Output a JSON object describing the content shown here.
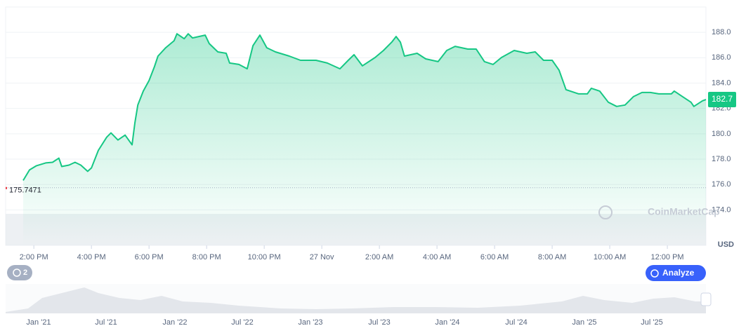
{
  "chart_data": {
    "type": "line",
    "x": [
      13.63,
      13.85,
      14.09,
      14.41,
      14.65,
      14.87,
      14.97,
      15.22,
      15.43,
      15.63,
      15.87,
      16.0,
      16.24,
      16.53,
      16.68,
      16.92,
      17.17,
      17.41,
      17.51,
      17.61,
      17.8,
      18.0,
      18.19,
      18.31,
      18.58,
      18.87,
      18.97,
      19.22,
      19.36,
      19.51,
      19.95,
      20.09,
      20.39,
      20.68,
      20.8,
      21.12,
      21.41,
      21.61,
      21.85,
      22.09,
      22.39,
      22.87,
      23.26,
      23.8,
      24.19,
      24.63,
      24.92,
      25.12,
      25.41,
      25.85,
      26.14,
      26.43,
      26.58,
      26.73,
      26.87,
      27.31,
      27.61,
      28.04,
      28.34,
      28.63,
      29.07,
      29.36,
      29.65,
      29.95,
      30.24,
      30.68,
      31.12,
      31.41,
      31.7,
      32.0,
      32.24,
      32.48,
      32.92,
      33.22,
      33.36,
      33.65,
      33.95,
      34.24,
      34.53,
      34.82,
      35.12,
      35.41,
      35.7,
      36.14,
      36.24,
      36.53,
      36.82,
      36.92,
      37.22,
      37.34
    ],
    "series": [
      {
        "name": "USD",
        "color": "#16c784",
        "values": [
          176.32,
          177.15,
          177.48,
          177.7,
          177.75,
          178.08,
          177.42,
          177.53,
          177.75,
          177.53,
          177.04,
          177.31,
          178.69,
          179.73,
          180.07,
          179.51,
          179.9,
          179.13,
          180.89,
          182.27,
          183.37,
          184.2,
          185.3,
          186.13,
          186.79,
          187.34,
          187.89,
          187.5,
          187.89,
          187.56,
          187.78,
          187.12,
          186.46,
          186.35,
          185.58,
          185.47,
          185.13,
          186.95,
          187.78,
          186.79,
          186.46,
          186.13,
          185.8,
          185.8,
          185.58,
          185.13,
          185.8,
          186.24,
          185.36,
          186.02,
          186.57,
          187.23,
          187.67,
          187.23,
          186.13,
          186.35,
          185.91,
          185.69,
          186.57,
          186.9,
          186.68,
          186.68,
          185.69,
          185.47,
          186.02,
          186.57,
          186.35,
          186.46,
          185.8,
          185.8,
          185.02,
          183.48,
          183.15,
          183.15,
          183.59,
          183.37,
          182.49,
          182.16,
          182.27,
          182.93,
          183.26,
          183.26,
          183.15,
          183.15,
          183.37,
          182.93,
          182.49,
          182.16,
          182.6,
          182.7
        ]
      }
    ],
    "xlim": [
      13.02,
      37.34
    ],
    "ylim": [
      171.2,
      190
    ],
    "xticks": [
      {
        "value": 14,
        "label": "2:00 PM"
      },
      {
        "value": 16,
        "label": "4:00 PM"
      },
      {
        "value": 18,
        "label": "6:00 PM"
      },
      {
        "value": 20,
        "label": "8:00 PM"
      },
      {
        "value": 22,
        "label": "10:00 PM"
      },
      {
        "value": 24,
        "label": "27 Nov"
      },
      {
        "value": 26,
        "label": "2:00 AM"
      },
      {
        "value": 28,
        "label": "4:00 AM"
      },
      {
        "value": 30,
        "label": "6:00 AM"
      },
      {
        "value": 32,
        "label": "8:00 AM"
      },
      {
        "value": 34,
        "label": "10:00 AM"
      },
      {
        "value": 36,
        "label": "12:00 PM"
      }
    ],
    "yticks": [
      {
        "value": 174,
        "label": "174.0"
      },
      {
        "value": 176,
        "label": "176.0"
      },
      {
        "value": 178,
        "label": "178.0"
      },
      {
        "value": 180,
        "label": "180.0"
      },
      {
        "value": 182,
        "label": "182.0"
      },
      {
        "value": 184,
        "label": "184.0"
      },
      {
        "value": 186,
        "label": "186.0"
      },
      {
        "value": 188,
        "label": "188.0"
      }
    ],
    "grid": true,
    "y_axis_label": "USD",
    "reference_value": 175.7471,
    "current_price": 182.7,
    "watermark": "CoinMarketCap",
    "badge": "2",
    "button": "Analyze",
    "navigator_labels": [
      "Jan '21",
      "Jul '21",
      "Jan '22",
      "Jul '22",
      "Jan '23",
      "Jul '23",
      "Jan '24",
      "Jul '24",
      "Jan '25",
      "Jul '25"
    ]
  }
}
